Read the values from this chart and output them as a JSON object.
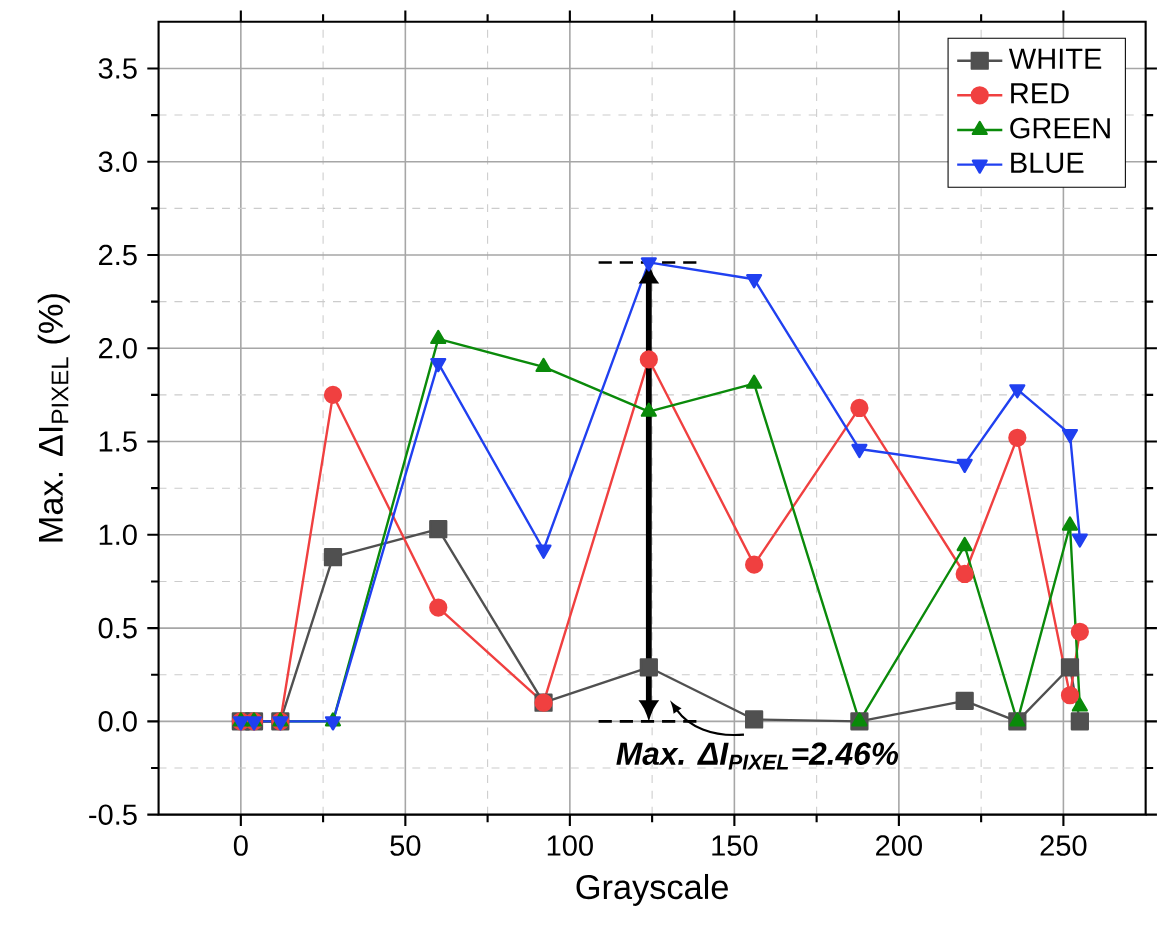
{
  "chart_data": {
    "type": "line",
    "xlabel": "Grayscale",
    "ylabel": "Max. ΔI$_{PIXEL}$ (%)",
    "x": [
      0,
      4,
      12,
      28,
      60,
      92,
      124,
      156,
      188,
      220,
      236,
      252,
      255
    ],
    "series": [
      {
        "name": "WHITE",
        "color": "#505050",
        "marker": "square",
        "values": [
          0,
          0,
          0,
          0.88,
          1.03,
          0.1,
          0.29,
          0.01,
          0,
          0.11,
          0,
          0.29,
          0
        ]
      },
      {
        "name": "RED",
        "color": "#f04040",
        "marker": "circle",
        "values": [
          0,
          0,
          0,
          1.75,
          0.61,
          0.1,
          1.94,
          0.84,
          1.68,
          0.79,
          1.52,
          0.14,
          0.48
        ]
      },
      {
        "name": "GREEN",
        "color": "#0a8a0a",
        "marker": "triangle",
        "values": [
          0,
          0,
          0,
          0,
          2.05,
          1.9,
          1.66,
          1.81,
          0,
          0.94,
          0,
          1.05,
          0.08
        ]
      },
      {
        "name": "BLUE",
        "color": "#2040f0",
        "marker": "triangle-down",
        "values": [
          0,
          0,
          0,
          0,
          1.92,
          0.92,
          2.46,
          2.37,
          1.46,
          1.38,
          1.78,
          1.54,
          0.98
        ]
      }
    ],
    "xlim": [
      -25,
      275
    ],
    "xticks": [
      0,
      50,
      100,
      150,
      200,
      250
    ],
    "ylim": [
      -0.5,
      3.75
    ],
    "yticks": [
      -0.5,
      {
        "value": 0,
        "label": "0.0"
      },
      0.5,
      {
        "value": 1,
        "label": "1.0"
      },
      1.5,
      {
        "value": 2,
        "label": "2.0"
      },
      2.5,
      {
        "value": 3,
        "label": "3.0"
      },
      3.5
    ],
    "ref_lines": [
      {
        "axis": "y",
        "value": 2.46,
        "color": "#000000",
        "line_style": "dashed"
      },
      {
        "axis": "y",
        "value": 0,
        "color": "#000000",
        "line_style": "dashed"
      }
    ],
    "grid": true,
    "legend": "top right",
    "annotations": [
      "Max. ΔI$_{PIXEL}$=2.46%"
    ]
  }
}
